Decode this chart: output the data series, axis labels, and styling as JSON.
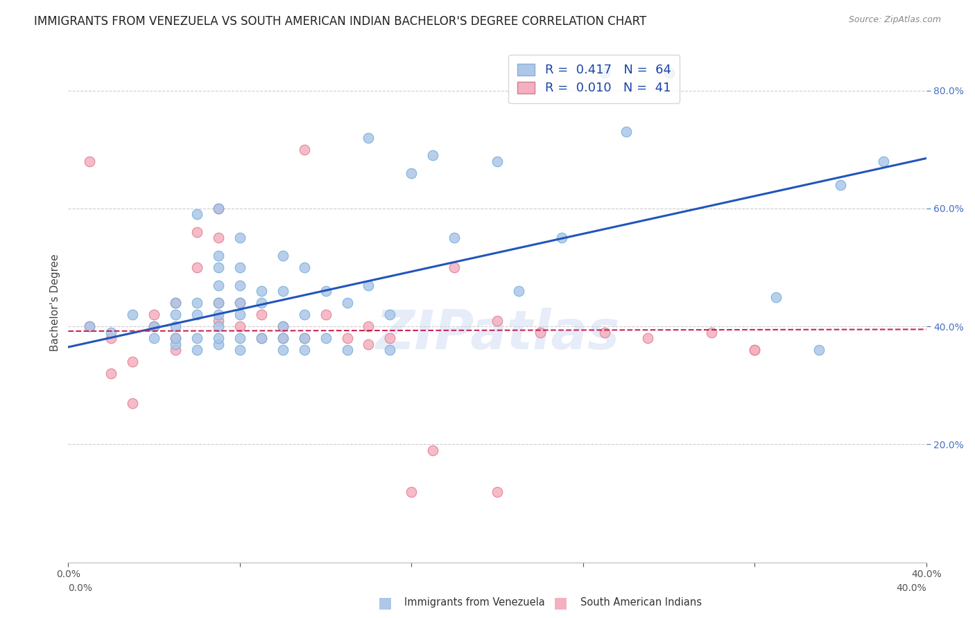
{
  "title": "IMMIGRANTS FROM VENEZUELA VS SOUTH AMERICAN INDIAN BACHELOR'S DEGREE CORRELATION CHART",
  "source": "Source: ZipAtlas.com",
  "ylabel": "Bachelor's Degree",
  "xlim": [
    0.0,
    0.4
  ],
  "ylim": [
    0.0,
    0.88
  ],
  "yticks": [
    0.2,
    0.4,
    0.6,
    0.8
  ],
  "ytick_labels": [
    "20.0%",
    "40.0%",
    "60.0%",
    "80.0%"
  ],
  "xticks": [
    0.0,
    0.08,
    0.16,
    0.24,
    0.32,
    0.4
  ],
  "xtick_labels": [
    "0.0%",
    "",
    "",
    "",
    "",
    "40.0%"
  ],
  "venezuela_color": "#aec6e8",
  "venezuela_edge": "#6aaed6",
  "venezuela_line_color": "#2255bb",
  "south_indian_color": "#f4b0c0",
  "south_indian_edge": "#e07888",
  "south_indian_line_color": "#cc2255",
  "watermark": "ZIPatlas",
  "background_color": "#ffffff",
  "venezuela_scatter_x": [
    0.01,
    0.02,
    0.03,
    0.04,
    0.04,
    0.05,
    0.05,
    0.05,
    0.05,
    0.05,
    0.06,
    0.06,
    0.06,
    0.06,
    0.06,
    0.07,
    0.07,
    0.07,
    0.07,
    0.07,
    0.07,
    0.07,
    0.07,
    0.07,
    0.08,
    0.08,
    0.08,
    0.08,
    0.08,
    0.08,
    0.08,
    0.09,
    0.09,
    0.09,
    0.1,
    0.1,
    0.1,
    0.1,
    0.1,
    0.11,
    0.11,
    0.11,
    0.11,
    0.12,
    0.12,
    0.13,
    0.13,
    0.14,
    0.14,
    0.15,
    0.15,
    0.16,
    0.17,
    0.18,
    0.2,
    0.21,
    0.23,
    0.25,
    0.26,
    0.28,
    0.33,
    0.35,
    0.36,
    0.38
  ],
  "venezuela_scatter_y": [
    0.4,
    0.39,
    0.42,
    0.38,
    0.4,
    0.37,
    0.38,
    0.44,
    0.42,
    0.4,
    0.36,
    0.38,
    0.42,
    0.44,
    0.59,
    0.37,
    0.38,
    0.4,
    0.42,
    0.44,
    0.5,
    0.52,
    0.6,
    0.47,
    0.36,
    0.38,
    0.42,
    0.44,
    0.47,
    0.5,
    0.55,
    0.38,
    0.44,
    0.46,
    0.36,
    0.38,
    0.4,
    0.46,
    0.52,
    0.36,
    0.38,
    0.42,
    0.5,
    0.38,
    0.46,
    0.36,
    0.44,
    0.47,
    0.72,
    0.42,
    0.36,
    0.66,
    0.69,
    0.55,
    0.68,
    0.46,
    0.55,
    0.83,
    0.73,
    0.83,
    0.45,
    0.36,
    0.64,
    0.68
  ],
  "south_indian_scatter_x": [
    0.01,
    0.01,
    0.02,
    0.02,
    0.03,
    0.03,
    0.04,
    0.04,
    0.05,
    0.05,
    0.05,
    0.06,
    0.06,
    0.07,
    0.07,
    0.07,
    0.07,
    0.08,
    0.08,
    0.09,
    0.09,
    0.1,
    0.1,
    0.11,
    0.11,
    0.12,
    0.13,
    0.14,
    0.14,
    0.15,
    0.16,
    0.17,
    0.18,
    0.2,
    0.2,
    0.22,
    0.25,
    0.27,
    0.3,
    0.32,
    0.32
  ],
  "south_indian_scatter_y": [
    0.4,
    0.68,
    0.38,
    0.32,
    0.34,
    0.27,
    0.42,
    0.4,
    0.36,
    0.38,
    0.44,
    0.5,
    0.56,
    0.41,
    0.44,
    0.55,
    0.6,
    0.4,
    0.44,
    0.38,
    0.42,
    0.38,
    0.4,
    0.38,
    0.7,
    0.42,
    0.38,
    0.4,
    0.37,
    0.38,
    0.12,
    0.19,
    0.5,
    0.41,
    0.12,
    0.39,
    0.39,
    0.38,
    0.39,
    0.36,
    0.36
  ],
  "ven_line_x0": 0.0,
  "ven_line_y0": 0.365,
  "ven_line_x1": 0.4,
  "ven_line_y1": 0.685,
  "si_line_x0": 0.0,
  "si_line_y0": 0.392,
  "si_line_x1": 0.4,
  "si_line_y1": 0.395,
  "title_fontsize": 12,
  "axis_label_fontsize": 11,
  "tick_fontsize": 10,
  "legend_fontsize": 13
}
